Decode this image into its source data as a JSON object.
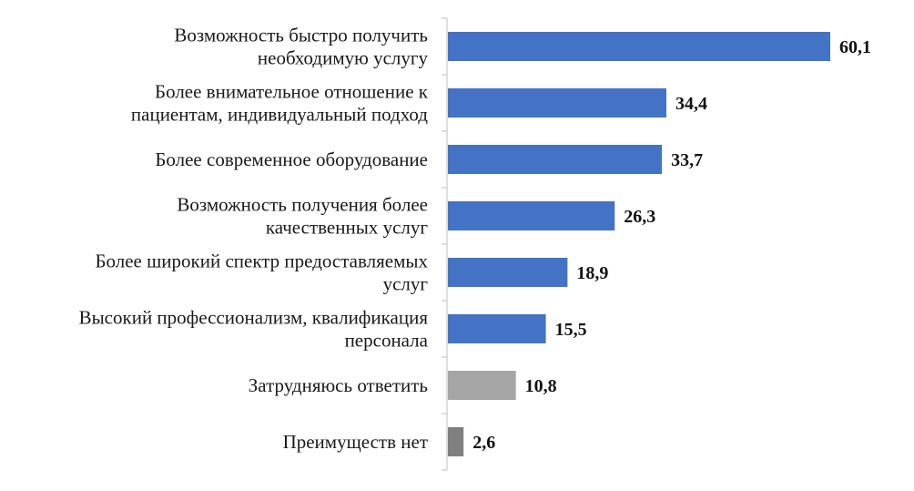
{
  "chart_data": {
    "type": "bar",
    "orientation": "horizontal",
    "categories": [
      [
        "Возможность быстро получить",
        "необходимую услугу"
      ],
      [
        "Более внимательное  отношение к",
        "пациентам, индивидуальный подход"
      ],
      [
        "Более современное оборудование"
      ],
      [
        "Возможность получения более",
        "качественных услуг"
      ],
      [
        "Более широкий спектр предоставляемых",
        "услуг"
      ],
      [
        "Высокий профессионализм, квалификация",
        "персонала"
      ],
      [
        "Затрудняюсь ответить"
      ],
      [
        "Преимуществ нет"
      ]
    ],
    "values": [
      60.1,
      34.4,
      33.7,
      26.3,
      18.9,
      15.5,
      10.8,
      2.6
    ],
    "value_labels": [
      "60,1",
      "34,4",
      "33,7",
      "26,3",
      "18,9",
      "15,5",
      "10,8",
      "2,6"
    ],
    "colors": [
      "#4472c4",
      "#4472c4",
      "#4472c4",
      "#4472c4",
      "#4472c4",
      "#4472c4",
      "#a5a5a5",
      "#7f7f7f"
    ],
    "xlim": [
      0,
      60.1
    ],
    "grid": false,
    "legend": "none"
  }
}
